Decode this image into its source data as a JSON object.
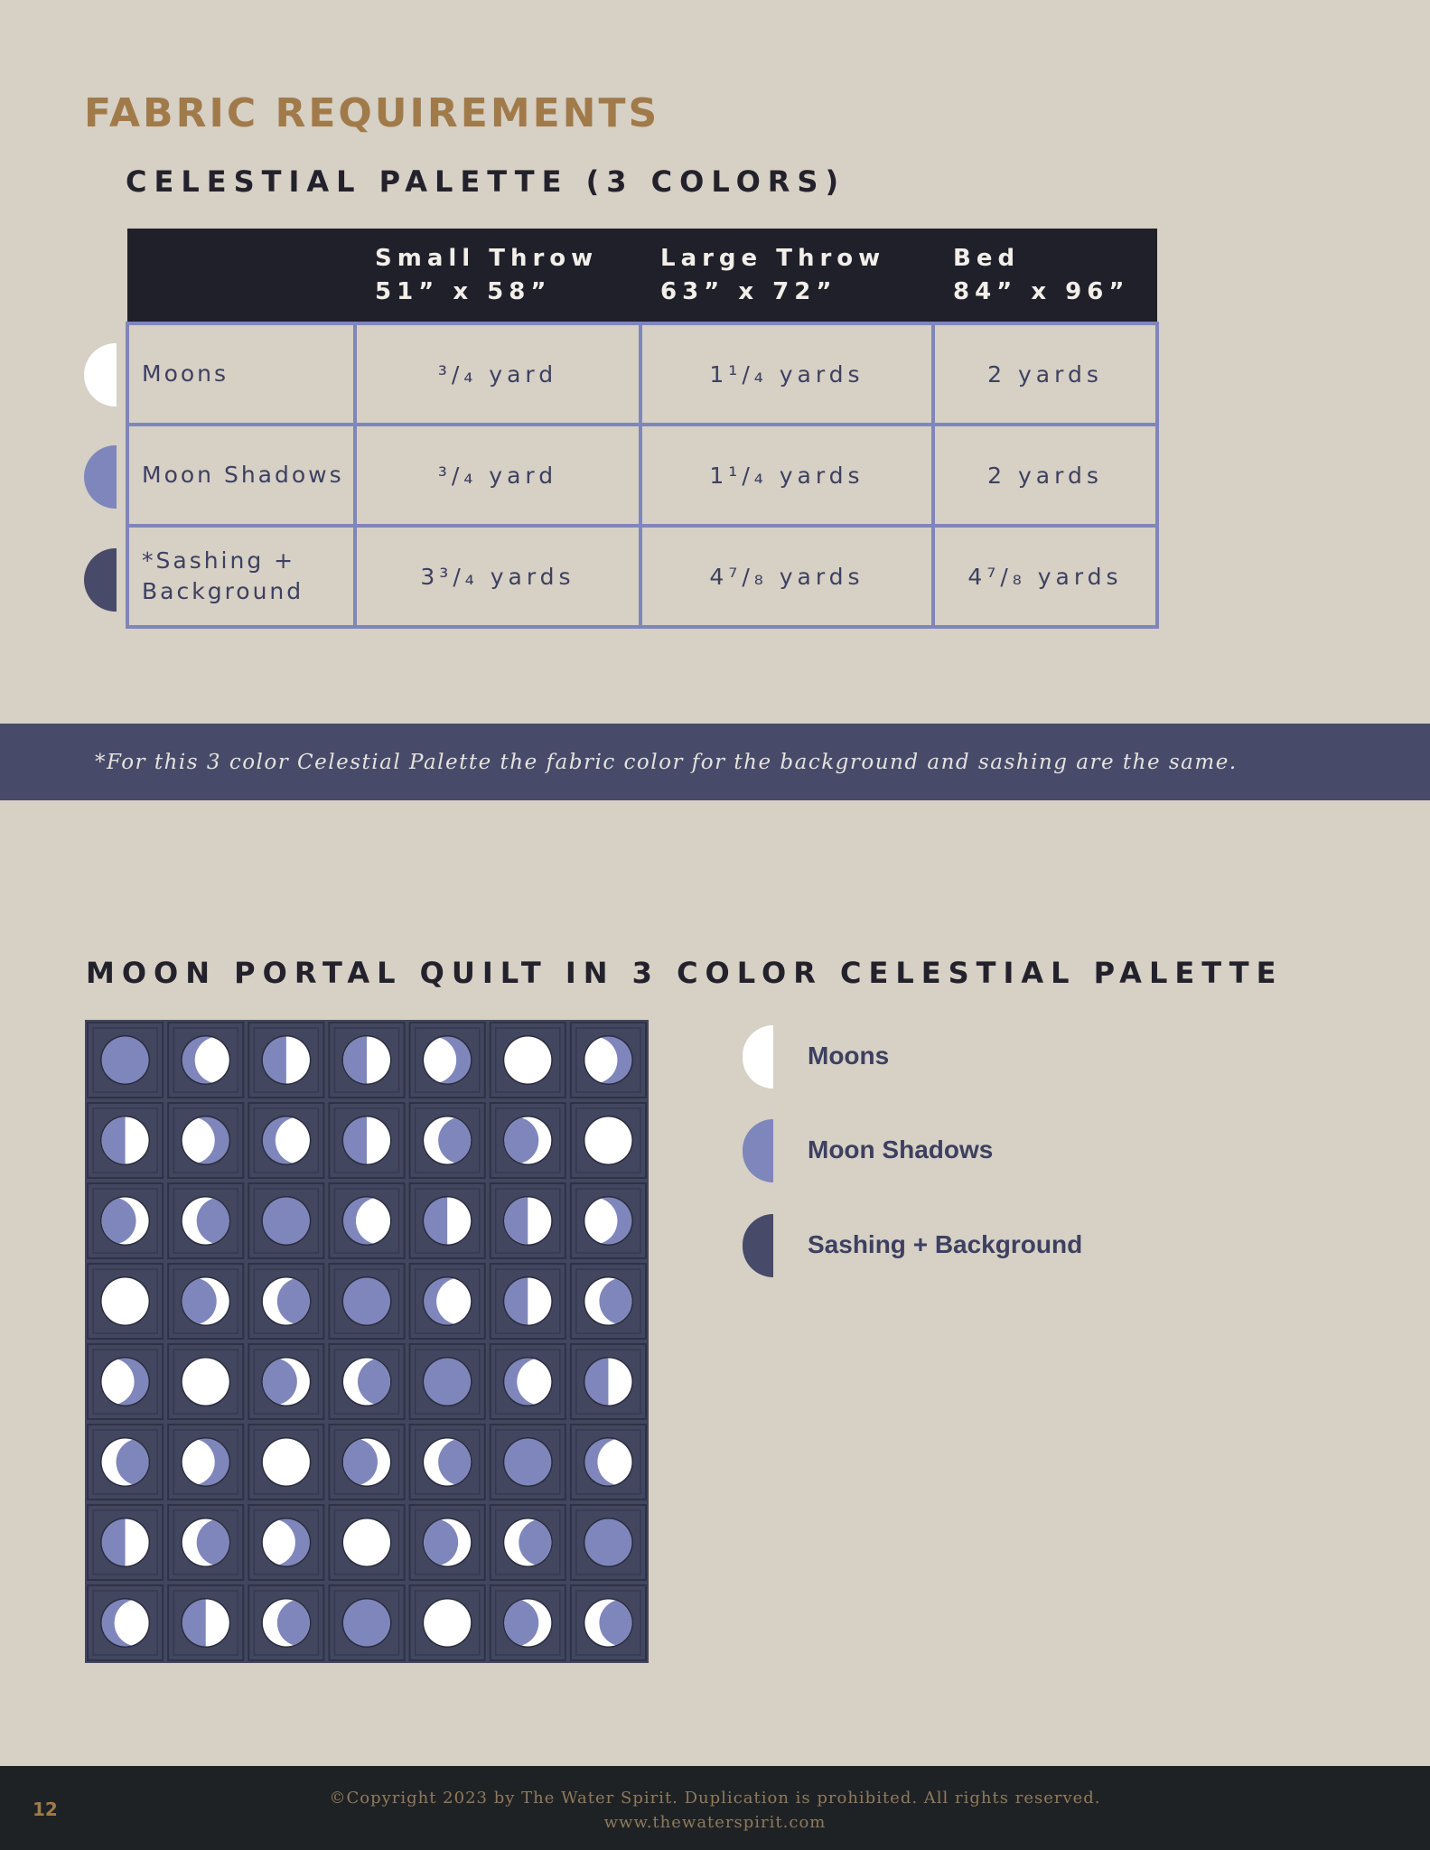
{
  "colors": {
    "background": "#d6d0c5",
    "title": "#a17a4a",
    "table_header": "#20202b",
    "table_border": "#7f86bb",
    "moons": "#ffffff",
    "moon_shadows": "#7f86bb",
    "sashing_background": "#474b69",
    "footer": "#1f2224"
  },
  "title": "FABRIC REQUIREMENTS",
  "subtitle": "CELESTIAL PALETTE (3 COLORS)",
  "table": {
    "headers": [
      {
        "name": "Small Throw",
        "size": "51” x 58”"
      },
      {
        "name": "Large Throw",
        "size": "63” x 72”"
      },
      {
        "name": "Bed",
        "size": "84” x 96”"
      }
    ],
    "rows": [
      {
        "label": "Moons",
        "swatch_icon": "half-moon-white-icon",
        "values": [
          "³/₄ yard",
          "1¹/₄ yards",
          "2 yards"
        ]
      },
      {
        "label": "Moon Shadows",
        "swatch_icon": "half-moon-periwinkle-icon",
        "values": [
          "³/₄ yard",
          "1¹/₄ yards",
          "2 yards"
        ]
      },
      {
        "label_line1": "*Sashing +",
        "label_line2": "Background",
        "swatch_icon": "half-moon-navy-icon",
        "values": [
          "3³/₄ yards",
          "4⁷/₈ yards",
          "4⁷/₈ yards"
        ]
      }
    ]
  },
  "note": "*For this 3 color Celestial Palette the fabric color for the background and sashing are the same.",
  "quilt_title": "MOON PORTAL QUILT IN 3 COLOR CELESTIAL PALETTE",
  "quilt_image": "moon-phase-quilt-diagram",
  "legend": [
    {
      "label": "Moons",
      "icon": "half-moon-white-icon"
    },
    {
      "label": "Moon Shadows",
      "icon": "half-moon-periwinkle-icon"
    },
    {
      "label": "Sashing + Background",
      "icon": "half-moon-navy-icon"
    }
  ],
  "footer": {
    "page_number": "12",
    "copyright": "©Copyright 2023 by The Water Spirit. Duplication is prohibited. All rights reserved.",
    "website": "www.thewaterspirit.com"
  }
}
